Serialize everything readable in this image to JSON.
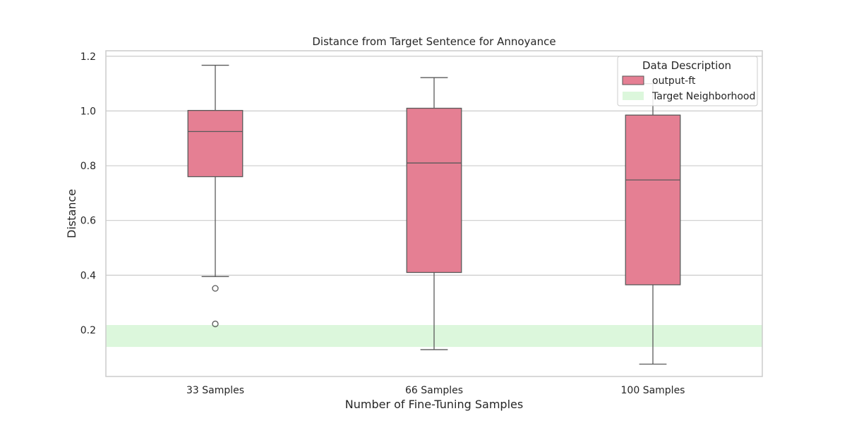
{
  "chart_data": {
    "type": "box",
    "title": "Distance from Target Sentence for Annoyance",
    "xlabel": "Number of Fine-Tuning Samples",
    "ylabel": "Distance",
    "ylim": [
      0.03,
      1.22
    ],
    "yticks": [
      "0.2",
      "0.4",
      "0.6",
      "0.8",
      "1.0",
      "1.2"
    ],
    "grid": true,
    "categories": [
      "33 Samples",
      "66 Samples",
      "100 Samples"
    ],
    "series": [
      {
        "name": "output-ft",
        "color": "#e57f93",
        "boxes": [
          {
            "whislo": 0.395,
            "q1": 0.76,
            "med": 0.925,
            "q3": 1.002,
            "whishi": 1.167,
            "fliers": [
              0.352,
              0.222
            ]
          },
          {
            "whislo": 0.128,
            "q1": 0.41,
            "med": 0.81,
            "q3": 1.01,
            "whishi": 1.122,
            "fliers": []
          },
          {
            "whislo": 0.075,
            "q1": 0.365,
            "med": 0.748,
            "q3": 0.985,
            "whishi": 1.1,
            "fliers": []
          }
        ]
      }
    ],
    "target_neighborhood": {
      "name": "Target Neighborhood",
      "color": "#dcf7dc",
      "y0": 0.138,
      "y1": 0.218
    },
    "legend": {
      "title": "Data Description",
      "placement": "top-right"
    }
  }
}
